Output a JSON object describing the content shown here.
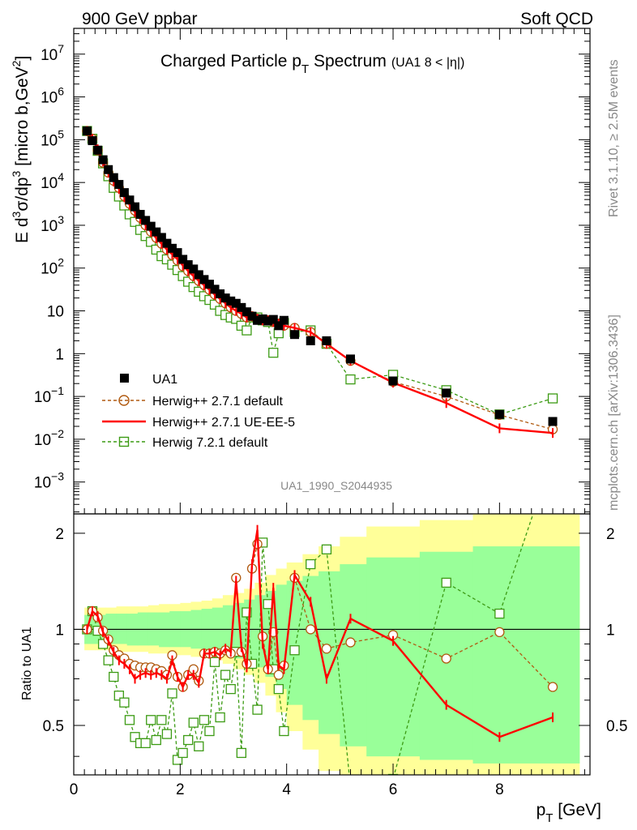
{
  "header": {
    "left": "900 GeV ppbar",
    "right": "Soft QCD",
    "side_top": "Rivet 3.1.10, ≥ 2.5M events",
    "side_bottom": "mcplots.cern.ch [arXiv:1306.3436]"
  },
  "chart_data": [
    {
      "type": "scatter",
      "panel": "main",
      "title": "Charged Particle p_T Spectrum",
      "title_main": "Charged Particle p",
      "title_sub": "T",
      "title_main2": " Spectrum",
      "title_note": "(UA1   8 < |η|)",
      "watermark": "UA1_1990_S2044935",
      "ylabel": "E d³σ/dp³ [micro b,GeV²]",
      "ylabel_parts": [
        "E d",
        "3",
        "σ/dp",
        "3",
        " [micro b,GeV",
        "2",
        "]"
      ],
      "yscale": "log",
      "ylim": [
        0.00018,
        40000000
      ],
      "xlim": [
        0,
        9.7
      ],
      "yticks": [
        {
          "v": 10000000,
          "base": "10",
          "exp": "7"
        },
        {
          "v": 1000000,
          "base": "10",
          "exp": "6"
        },
        {
          "v": 100000,
          "base": "10",
          "exp": "5"
        },
        {
          "v": 10000,
          "base": "10",
          "exp": "4"
        },
        {
          "v": 1000,
          "base": "10",
          "exp": "3"
        },
        {
          "v": 100,
          "base": "10",
          "exp": "2"
        },
        {
          "v": 10,
          "base": "10",
          "exp": ""
        },
        {
          "v": 1,
          "base": "1",
          "exp": ""
        },
        {
          "v": 0.1,
          "base": "10",
          "exp": "−1"
        },
        {
          "v": 0.01,
          "base": "10",
          "exp": "−2"
        },
        {
          "v": 0.001,
          "base": "10",
          "exp": "−3"
        }
      ],
      "legend_position": "bottom-left",
      "series": [
        {
          "name": "UA1",
          "color": "#000000",
          "style": "filled-square",
          "x": [
            0.25,
            0.35,
            0.45,
            0.55,
            0.65,
            0.75,
            0.85,
            0.95,
            1.05,
            1.15,
            1.25,
            1.35,
            1.45,
            1.55,
            1.65,
            1.75,
            1.85,
            1.95,
            2.05,
            2.15,
            2.25,
            2.35,
            2.45,
            2.55,
            2.65,
            2.75,
            2.85,
            2.95,
            3.05,
            3.15,
            3.25,
            3.35,
            3.45,
            3.55,
            3.65,
            3.75,
            3.85,
            3.95,
            4.15,
            4.45,
            4.75,
            5.2,
            6.0,
            7.0,
            8.0,
            9.0
          ],
          "y": [
            160000,
            95000,
            57000,
            34000,
            20000,
            13000,
            9000,
            5800,
            3900,
            2700,
            1800,
            1300,
            950,
            700,
            520,
            380,
            290,
            230,
            160,
            120,
            95,
            70,
            54,
            42,
            32,
            25,
            20,
            17,
            15,
            12,
            9.5,
            7.5,
            6,
            6.5,
            5.8,
            6.3,
            4.5,
            6,
            2.8,
            2,
            2,
            0.75,
            0.23,
            0.12,
            0.038,
            0.026
          ]
        },
        {
          "name": "Herwig++ 2.7.1 default",
          "color": "#b05a10",
          "style": "open-circle-dashed",
          "x": [
            0.25,
            0.35,
            0.45,
            0.55,
            0.65,
            0.75,
            0.85,
            0.95,
            1.05,
            1.15,
            1.25,
            1.35,
            1.45,
            1.55,
            1.65,
            1.75,
            1.85,
            1.95,
            2.05,
            2.15,
            2.25,
            2.35,
            2.45,
            2.55,
            2.65,
            2.75,
            2.85,
            2.95,
            3.05,
            3.15,
            3.25,
            3.35,
            3.45,
            3.55,
            3.65,
            3.75,
            3.85,
            3.95,
            4.15,
            4.45,
            4.75,
            5.2,
            6.0,
            7.0,
            8.0,
            9.0
          ],
          "y": [
            160000,
            105000,
            56000,
            29000,
            17000,
            11000,
            7500,
            4800,
            3200,
            2200,
            1500,
            1000,
            710,
            510,
            370,
            270,
            200,
            150,
            110,
            85,
            65,
            50,
            40,
            31,
            24,
            19,
            15,
            12,
            10,
            8.5,
            7,
            7.5,
            6.5,
            6,
            6,
            5.5,
            5,
            4.5,
            4,
            3.2,
            1.7,
            0.68,
            0.22,
            0.1,
            0.037,
            0.017
          ]
        },
        {
          "name": "Herwig++ 2.7.1 UE-EE-5",
          "color": "#ff0000",
          "style": "solid-line",
          "x": [
            0.25,
            0.35,
            0.45,
            0.55,
            0.65,
            0.75,
            0.85,
            0.95,
            1.05,
            1.15,
            1.25,
            1.35,
            1.45,
            1.55,
            1.65,
            1.75,
            1.85,
            1.95,
            2.05,
            2.15,
            2.25,
            2.35,
            2.45,
            2.55,
            2.65,
            2.75,
            2.85,
            2.95,
            3.05,
            3.15,
            3.25,
            3.35,
            3.45,
            3.55,
            3.65,
            3.75,
            3.85,
            3.95,
            4.15,
            4.45,
            4.75,
            5.2,
            6.0,
            7.0,
            8.0,
            9.0
          ],
          "y": [
            160000,
            105000,
            60000,
            31000,
            17000,
            10500,
            7000,
            4500,
            3000,
            2000,
            1400,
            1000,
            700,
            500,
            370,
            270,
            210,
            160,
            115,
            85,
            65,
            50,
            40,
            31,
            24,
            19,
            15,
            12,
            10,
            8.5,
            7,
            7.5,
            6.5,
            6,
            6,
            5.5,
            5,
            4.5,
            4,
            3.2,
            1.7,
            0.68,
            0.21,
            0.07,
            0.018,
            0.014
          ]
        },
        {
          "name": "Herwig 7.2.1 default",
          "color": "#3c9b14",
          "style": "open-square-dashed",
          "x": [
            0.25,
            0.35,
            0.45,
            0.55,
            0.65,
            0.75,
            0.85,
            0.95,
            1.05,
            1.15,
            1.25,
            1.35,
            1.45,
            1.55,
            1.65,
            1.75,
            1.85,
            1.95,
            2.05,
            2.15,
            2.25,
            2.35,
            2.45,
            2.55,
            2.65,
            2.75,
            2.85,
            2.95,
            3.05,
            3.15,
            3.25,
            3.35,
            3.45,
            3.55,
            3.65,
            3.75,
            3.85,
            3.95,
            4.15,
            4.45,
            4.75,
            5.2,
            6.0,
            7.0,
            8.0,
            9.0
          ],
          "y": [
            160000,
            105000,
            55000,
            28000,
            14000,
            7500,
            4700,
            2900,
            1800,
            1200,
            780,
            560,
            410,
            270,
            190,
            160,
            120,
            90,
            65,
            48,
            36,
            28,
            22,
            18,
            14,
            10,
            8,
            7,
            6.5,
            4.5,
            3.5,
            7,
            7,
            6,
            5.5,
            1.05,
            3,
            5.2,
            3.2,
            3.5,
            1.7,
            0.25,
            0.32,
            0.14,
            0.038,
            0.09
          ]
        }
      ]
    },
    {
      "type": "line",
      "panel": "ratio",
      "ylabel": "Ratio to UA1",
      "xlabel": "p_T [GeV]",
      "xlabel_main": "p",
      "xlabel_sub": "T",
      "xlabel_unit": " [GeV]",
      "xlim": [
        0,
        9.7
      ],
      "ylim": [
        0.35,
        2.3
      ],
      "xticks": [
        0,
        2,
        4,
        6,
        8
      ],
      "yticks": [
        0.5,
        1,
        2
      ],
      "bands": {
        "x_edges": [
          0.2,
          0.4,
          0.6,
          0.8,
          1.0,
          1.2,
          1.4,
          1.6,
          1.8,
          2.0,
          2.2,
          2.4,
          2.6,
          2.8,
          3.0,
          3.2,
          3.4,
          3.6,
          3.8,
          4.0,
          4.3,
          4.6,
          5.0,
          5.5,
          6.5,
          7.5,
          9.5
        ],
        "yellow_lo": [
          0.86,
          0.86,
          0.86,
          0.85,
          0.85,
          0.85,
          0.84,
          0.84,
          0.83,
          0.83,
          0.82,
          0.82,
          0.8,
          0.78,
          0.75,
          0.72,
          0.68,
          0.62,
          0.55,
          0.48,
          0.42,
          0.36,
          0.35,
          0.35,
          0.35,
          0.35
        ],
        "yellow_hi": [
          1.17,
          1.17,
          1.17,
          1.18,
          1.18,
          1.18,
          1.19,
          1.2,
          1.2,
          1.21,
          1.22,
          1.23,
          1.25,
          1.28,
          1.3,
          1.34,
          1.4,
          1.48,
          1.55,
          1.62,
          1.72,
          1.82,
          1.95,
          2.1,
          2.2,
          2.3
        ],
        "green_lo": [
          0.9,
          0.9,
          0.9,
          0.9,
          0.89,
          0.89,
          0.89,
          0.88,
          0.88,
          0.88,
          0.87,
          0.86,
          0.85,
          0.83,
          0.81,
          0.79,
          0.76,
          0.71,
          0.65,
          0.58,
          0.52,
          0.47,
          0.43,
          0.4,
          0.39,
          0.38
        ],
        "green_hi": [
          1.11,
          1.11,
          1.12,
          1.12,
          1.12,
          1.13,
          1.13,
          1.13,
          1.14,
          1.14,
          1.15,
          1.16,
          1.17,
          1.19,
          1.21,
          1.24,
          1.28,
          1.32,
          1.38,
          1.42,
          1.47,
          1.52,
          1.6,
          1.68,
          1.75,
          1.82
        ]
      },
      "series": [
        {
          "name": "Herwig++ 2.7.1 default",
          "color": "#b05a10",
          "x": [
            0.25,
            0.35,
            0.45,
            0.55,
            0.65,
            0.75,
            0.85,
            0.95,
            1.05,
            1.15,
            1.25,
            1.35,
            1.45,
            1.55,
            1.65,
            1.75,
            1.85,
            1.95,
            2.05,
            2.15,
            2.25,
            2.35,
            2.45,
            2.55,
            2.65,
            2.75,
            2.85,
            2.95,
            3.05,
            3.15,
            3.25,
            3.35,
            3.45,
            3.55,
            3.65,
            3.75,
            3.85,
            3.95,
            4.15,
            4.45,
            4.75,
            5.2,
            6.0,
            7.0,
            8.0,
            9.0
          ],
          "y": [
            1.0,
            1.14,
            1.09,
            0.99,
            0.93,
            0.86,
            0.83,
            0.81,
            0.78,
            0.77,
            0.76,
            0.76,
            0.76,
            0.75,
            0.74,
            0.72,
            0.83,
            0.71,
            0.66,
            0.72,
            0.75,
            0.69,
            0.84,
            0.84,
            0.85,
            0.84,
            0.86,
            0.84,
            1.45,
            0.85,
            0.78,
            1.55,
            1.85,
            0.95,
            0.75,
            0.98,
            0.72,
            0.77,
            1.45,
            1.0,
            0.87,
            0.91,
            0.96,
            0.81,
            0.98,
            0.66
          ]
        },
        {
          "name": "Herwig++ 2.7.1 UE-EE-5",
          "color": "#ff0000",
          "x": [
            0.25,
            0.35,
            0.45,
            0.55,
            0.65,
            0.75,
            0.85,
            0.95,
            1.05,
            1.15,
            1.25,
            1.35,
            1.45,
            1.55,
            1.65,
            1.75,
            1.85,
            1.95,
            2.05,
            2.15,
            2.25,
            2.35,
            2.45,
            2.55,
            2.65,
            2.75,
            2.85,
            2.95,
            3.05,
            3.15,
            3.25,
            3.35,
            3.45,
            3.55,
            3.65,
            3.75,
            3.85,
            3.95,
            4.15,
            4.45,
            4.75,
            5.2,
            6.0,
            7.0,
            8.0,
            9.0
          ],
          "y": [
            1.0,
            1.14,
            1.1,
            0.98,
            0.92,
            0.85,
            0.8,
            0.78,
            0.75,
            0.7,
            0.72,
            0.73,
            0.72,
            0.73,
            0.72,
            0.7,
            0.8,
            0.71,
            0.66,
            0.72,
            0.72,
            0.68,
            0.84,
            0.84,
            0.85,
            0.83,
            0.87,
            0.85,
            1.42,
            0.88,
            0.76,
            1.6,
            2.05,
            0.9,
            0.75,
            1.35,
            0.77,
            0.75,
            1.48,
            1.22,
            0.7,
            1.08,
            0.92,
            0.58,
            0.46,
            0.53
          ]
        },
        {
          "name": "Herwig 7.2.1 default",
          "color": "#3c9b14",
          "x": [
            0.25,
            0.35,
            0.45,
            0.55,
            0.65,
            0.75,
            0.85,
            0.95,
            1.05,
            1.15,
            1.25,
            1.35,
            1.45,
            1.55,
            1.65,
            1.75,
            1.85,
            1.95,
            2.05,
            2.15,
            2.25,
            2.35,
            2.45,
            2.55,
            2.65,
            2.75,
            2.85,
            2.95,
            3.05,
            3.15,
            3.25,
            3.35,
            3.45,
            3.55,
            3.65,
            3.75,
            3.85,
            3.95,
            4.15,
            4.45,
            4.75,
            5.2,
            6.0,
            7.0,
            8.0,
            9.0
          ],
          "y": [
            1.0,
            1.14,
            0.99,
            0.9,
            0.8,
            0.71,
            0.62,
            0.59,
            0.52,
            0.46,
            0.44,
            0.44,
            0.52,
            0.45,
            0.52,
            0.47,
            0.63,
            0.39,
            0.41,
            0.45,
            0.51,
            0.43,
            0.52,
            0.48,
            0.79,
            0.53,
            0.72,
            0.65,
            0.85,
            0.41,
            1.13,
            0.78,
            0.56,
            1.87,
            1.2,
            0.75,
            0.65,
            0.48,
            0.86,
            1.6,
            1.78,
            0.32,
            0.34,
            1.4,
            1.12,
            3.5
          ]
        }
      ]
    }
  ]
}
